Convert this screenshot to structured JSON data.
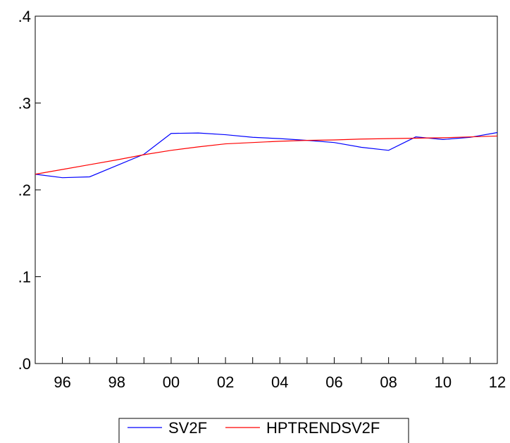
{
  "chart_data": {
    "type": "line",
    "x": [
      "1995",
      "1996",
      "1997",
      "1998",
      "1999",
      "2000",
      "2001",
      "2002",
      "2003",
      "2004",
      "2005",
      "2006",
      "2007",
      "2008",
      "2009",
      "2010",
      "2011",
      "2012"
    ],
    "x_tick_labels": [
      "96",
      "98",
      "00",
      "02",
      "04",
      "06",
      "08",
      "10",
      "12"
    ],
    "y_tick_labels": [
      ".0",
      ".1",
      ".2",
      ".3",
      ".4"
    ],
    "ylim": [
      0,
      0.4
    ],
    "grid": false,
    "legend_position": "bottom-center",
    "series": [
      {
        "name": "SV2F",
        "color": "#0000ff",
        "values": [
          0.218,
          0.214,
          0.215,
          0.228,
          0.241,
          0.265,
          0.2655,
          0.2635,
          0.2605,
          0.259,
          0.257,
          0.2545,
          0.249,
          0.2455,
          0.261,
          0.258,
          0.2605,
          0.266
        ]
      },
      {
        "name": "HPTRENDSV2F",
        "color": "#ff0000",
        "values": [
          0.218,
          0.2235,
          0.229,
          0.2345,
          0.2405,
          0.2455,
          0.2495,
          0.253,
          0.2545,
          0.256,
          0.257,
          0.2575,
          0.2585,
          0.259,
          0.2595,
          0.26,
          0.261,
          0.262
        ]
      }
    ]
  }
}
